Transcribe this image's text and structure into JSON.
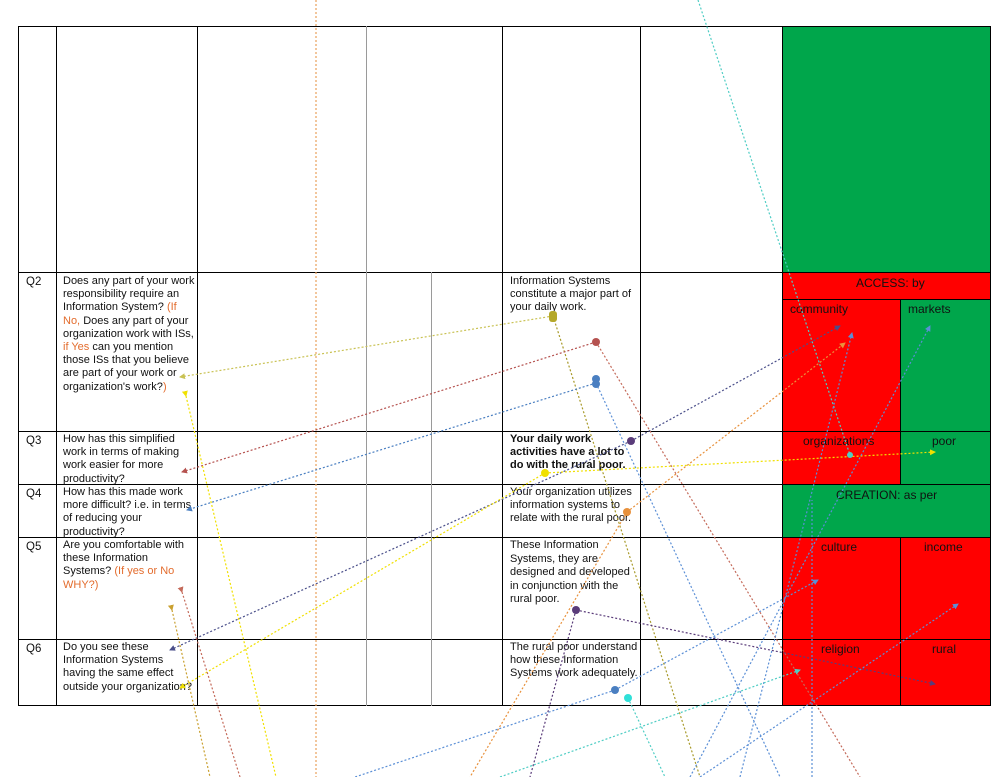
{
  "table": {
    "rows": [
      {
        "id": "Q2",
        "question": [
          {
            "t": "Does any part of your work responsibility require an Information System? "
          },
          {
            "t": "(If No, ",
            "c": "orange"
          },
          {
            "t": "Does any part of your organization work with ISs, "
          },
          {
            "t": "if Yes ",
            "c": "orange"
          },
          {
            "t": "can you mention those ISs that you believe are part of your work or organization's work?"
          },
          {
            "t": ")",
            "c": "orange"
          }
        ],
        "statement": "Information Systems constitute a major part of your daily work.",
        "statement_bold": false
      },
      {
        "id": "Q3",
        "question": [
          {
            "t": "How has this simplified work in terms of making work easier for more productivity?"
          }
        ],
        "statement": "Your daily work activities have a lot to do with the rural poor.",
        "statement_bold": true
      },
      {
        "id": "Q4",
        "question": [
          {
            "t": "How has this made work more difficult? i.e. in terms of reducing your productivity?"
          }
        ],
        "statement": "Your organization utilizes information systems to relate with the rural poor.",
        "statement_bold": false
      },
      {
        "id": "Q5",
        "question": [
          {
            "t": "Are you comfortable with these Information Systems? "
          },
          {
            "t": "(If yes or No WHY?)",
            "c": "orange"
          }
        ],
        "statement": "These Information Systems, they are designed and developed in conjunction with the rural poor.",
        "statement_bold": false
      },
      {
        "id": "Q6",
        "question": [
          {
            "t": "Do you see these Information Systems having the same effect outside your organization?"
          }
        ],
        "statement": "The rural poor understand how these Information Systems work adequately.",
        "statement_bold": false
      }
    ]
  },
  "blocks": {
    "access_label": "ACCESS: by",
    "community": "community",
    "markets": "markets",
    "organizations": "organizations",
    "poor": "poor",
    "creation_label": "CREATION: as per",
    "culture": "culture",
    "income": "income",
    "religion": "religion",
    "rural": "rural"
  },
  "colors": {
    "green": "#00a64b",
    "red": "#ff0000",
    "orange_text": "#e36c2d"
  }
}
